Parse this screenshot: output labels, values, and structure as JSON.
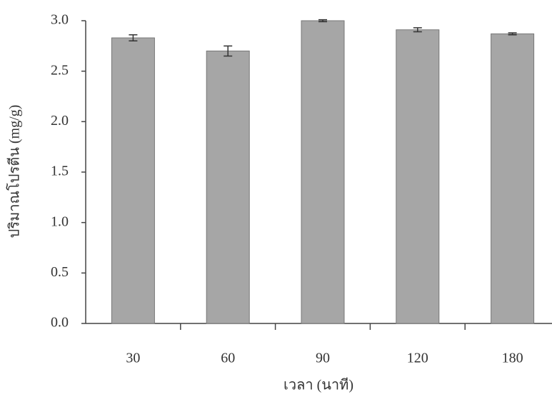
{
  "chart_data": {
    "type": "bar",
    "x_label": "เวลา (นาที)",
    "y_label": "ปริมาณโปรตีน (mg/g)",
    "categories": [
      "30",
      "60",
      "90",
      "120",
      "180"
    ],
    "values": [
      2.83,
      2.7,
      3.0,
      2.91,
      2.87
    ],
    "errors": [
      0.03,
      0.05,
      0.01,
      0.02,
      0.01
    ],
    "color": "#a6a6a6",
    "ylim": [
      0,
      3.0
    ],
    "yticks": [
      {
        "value": 0,
        "label": "0.0"
      },
      {
        "value": 0.5,
        "label": "0.5"
      },
      {
        "value": 1,
        "label": "1.0"
      },
      {
        "value": 1.5,
        "label": "1.5"
      },
      {
        "value": 2,
        "label": "2.0"
      },
      {
        "value": 2.5,
        "label": "2.5"
      },
      {
        "value": 3,
        "label": "3.0"
      }
    ]
  }
}
